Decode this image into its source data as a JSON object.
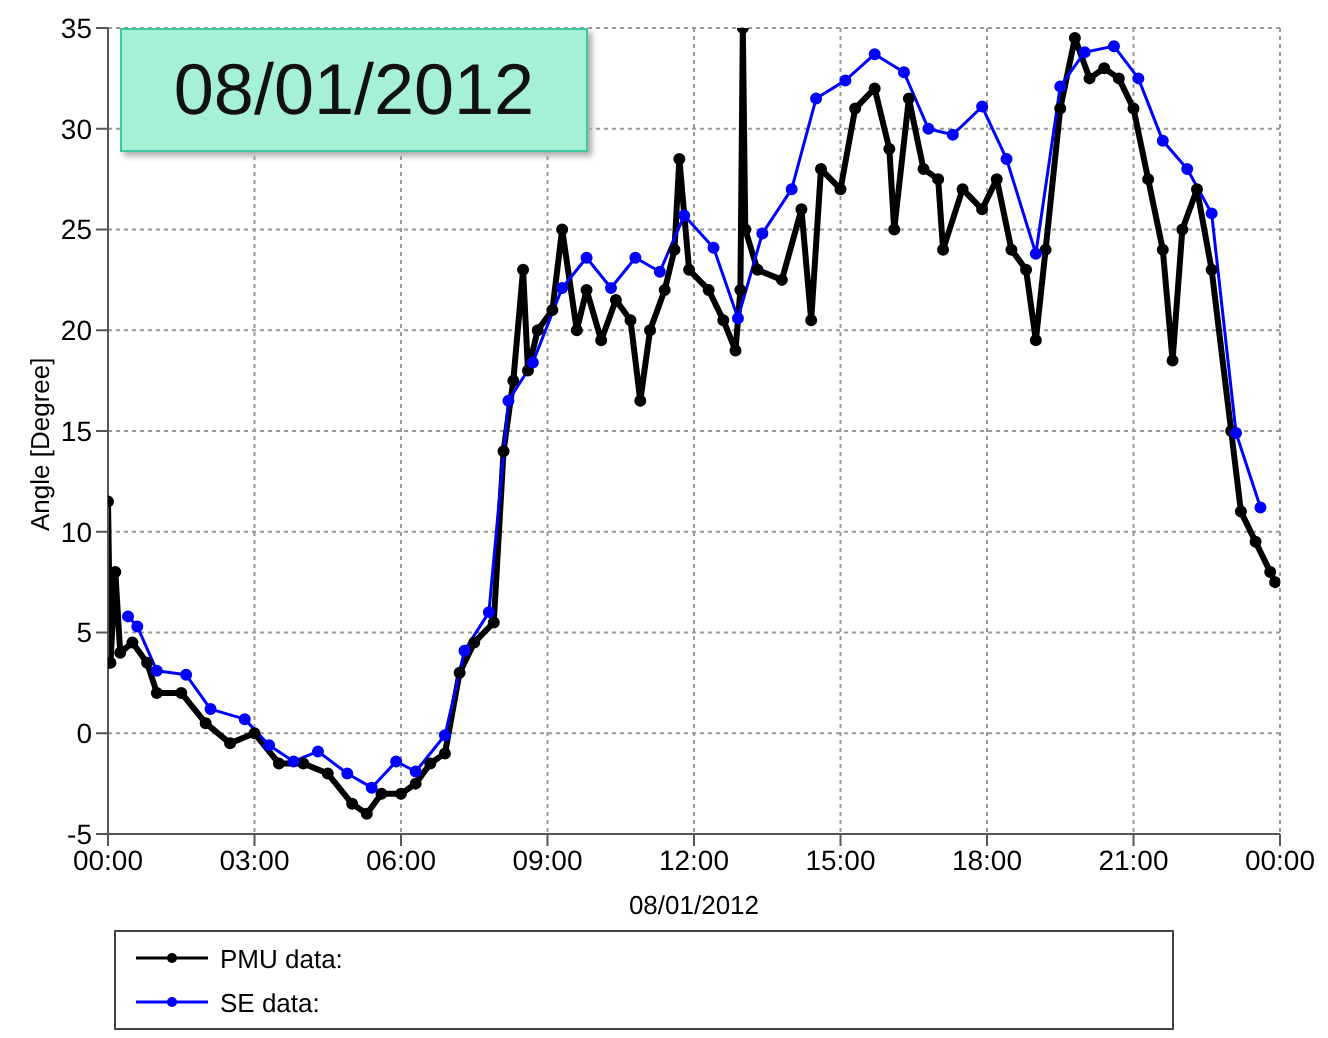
{
  "chart_data": {
    "type": "line",
    "xlabel": "08/01/2012",
    "ylabel": "Angle [Degree]",
    "annotations": [
      "08/01/2012"
    ],
    "xlim": [
      0,
      24
    ],
    "xticks": [
      {
        "value": 0,
        "label": "00:00"
      },
      {
        "value": 3,
        "label": "03:00"
      },
      {
        "value": 6,
        "label": "06:00"
      },
      {
        "value": 9,
        "label": "09:00"
      },
      {
        "value": 12,
        "label": "12:00"
      },
      {
        "value": 15,
        "label": "15:00"
      },
      {
        "value": 18,
        "label": "18:00"
      },
      {
        "value": 21,
        "label": "21:00"
      },
      {
        "value": 24,
        "label": "00:00"
      }
    ],
    "ylim": [
      -5,
      35
    ],
    "yticks": [
      -5,
      0,
      5,
      10,
      15,
      20,
      25,
      30,
      35
    ],
    "grid": true,
    "legend": "bottom",
    "marker": "circle",
    "line_style": "solid",
    "series": [
      {
        "name": "PMU data:",
        "color": "#000000",
        "x": [
          0,
          0.05,
          0.15,
          0.25,
          0.5,
          0.8,
          1,
          1.5,
          2,
          2.5,
          3,
          3.5,
          4,
          4.5,
          5,
          5.3,
          5.6,
          6,
          6.3,
          6.6,
          6.9,
          7.2,
          7.5,
          7.9,
          8.1,
          8.3,
          8.5,
          8.6,
          8.8,
          9.1,
          9.3,
          9.6,
          9.8,
          10.1,
          10.4,
          10.7,
          10.9,
          11.1,
          11.4,
          11.6,
          11.7,
          11.9,
          12.3,
          12.6,
          12.85,
          12.95,
          13,
          13.05,
          13.3,
          13.8,
          14.2,
          14.4,
          14.6,
          15,
          15.3,
          15.7,
          16,
          16.1,
          16.4,
          16.7,
          17,
          17.1,
          17.5,
          17.9,
          18.2,
          18.5,
          18.8,
          19,
          19.2,
          19.5,
          19.8,
          20.1,
          20.4,
          20.7,
          21,
          21.3,
          21.6,
          21.8,
          22,
          22.3,
          22.6,
          23,
          23.2,
          23.5,
          23.8,
          23.9
        ],
        "values": [
          11.5,
          3.5,
          8,
          4,
          4.5,
          3.5,
          2,
          2,
          0.5,
          -0.5,
          0,
          -1.5,
          -1.5,
          -2,
          -3.5,
          -4,
          -3,
          -3,
          -2.5,
          -1.5,
          -1,
          3,
          4.5,
          5.5,
          14,
          17.5,
          23,
          18,
          20,
          21,
          25,
          20,
          22,
          19.5,
          21.5,
          20.5,
          16.5,
          20,
          22,
          24,
          28.5,
          23,
          22,
          20.5,
          19,
          22,
          35,
          25,
          23,
          22.5,
          26,
          20.5,
          28,
          27,
          31,
          32,
          29,
          25,
          31.5,
          28,
          27.5,
          24,
          27,
          26,
          27.5,
          24,
          23,
          19.5,
          24,
          31,
          34.5,
          32.5,
          33,
          32.5,
          31,
          27.5,
          24,
          18.5,
          25,
          27,
          23,
          15,
          11,
          9.5,
          8,
          7.5
        ]
      },
      {
        "name": "SE data:",
        "color": "#0000ff",
        "x": [
          0.41,
          0.6,
          1,
          1.6,
          2.1,
          2.8,
          3.3,
          3.8,
          4.3,
          4.9,
          5.4,
          5.9,
          6.3,
          6.9,
          7.3,
          7.8,
          8.2,
          8.7,
          9.3,
          9.8,
          10.3,
          10.8,
          11.3,
          11.8,
          12.4,
          12.9,
          13.4,
          14,
          14.5,
          15.1,
          15.7,
          16.3,
          16.8,
          17.3,
          17.9,
          18.4,
          19,
          19.5,
          20,
          20.6,
          21.1,
          21.6,
          22.1,
          22.6,
          23.1,
          23.6
        ],
        "values": [
          5.8,
          5.3,
          3.1,
          2.9,
          1.2,
          0.7,
          -0.6,
          -1.4,
          -0.9,
          -2,
          -2.7,
          -1.4,
          -1.9,
          -0.1,
          4.1,
          6,
          16.5,
          18.4,
          22.1,
          23.6,
          22.1,
          23.6,
          22.9,
          25.7,
          24.1,
          20.6,
          24.8,
          27,
          31.5,
          32.4,
          33.7,
          32.8,
          30,
          29.7,
          31.1,
          28.5,
          23.8,
          32.1,
          33.8,
          34.1,
          32.5,
          29.4,
          28,
          25.8,
          14.9,
          11.2
        ]
      }
    ]
  }
}
